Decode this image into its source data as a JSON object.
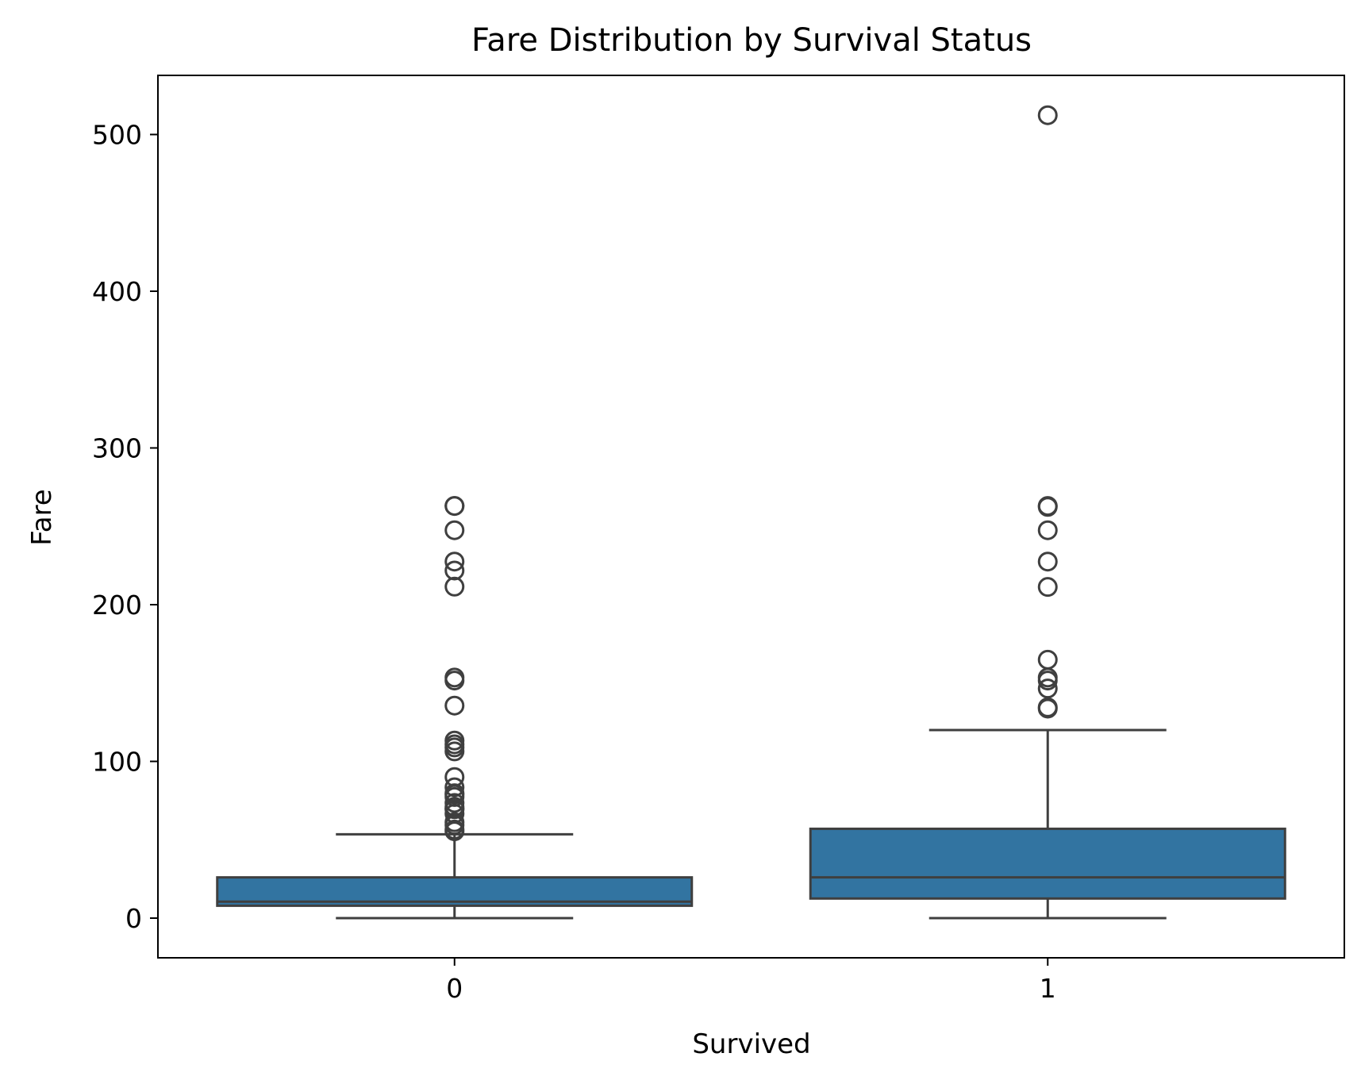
{
  "chart_data": {
    "type": "box",
    "title": "Fare Distribution by Survival Status",
    "xlabel": "Survived",
    "ylabel": "Fare",
    "ylim": [
      -25,
      540
    ],
    "yticks": [
      0,
      100,
      200,
      300,
      400,
      500
    ],
    "grid": false,
    "legend": "none",
    "box_color": "#3274a1",
    "line_color": "#3f3f3f",
    "categories": [
      "0",
      "1"
    ],
    "boxes": [
      {
        "category": "0",
        "whisker_low": 0,
        "q1": 7.9,
        "median": 10.5,
        "q3": 26,
        "whisker_high": 53.5,
        "outliers": [
          263,
          263,
          247.5,
          227.5,
          221.8,
          211.5,
          153.5,
          151.6,
          135.6,
          113.3,
          110.9,
          108.9,
          106.4,
          90,
          83.5,
          79.7,
          78.9,
          77.3,
          73.5,
          71,
          69.6,
          69.5,
          66.6,
          61.2,
          59.4,
          56.5,
          55.4
        ]
      },
      {
        "category": "1",
        "whisker_low": 0,
        "q1": 12.5,
        "median": 26,
        "q3": 57,
        "whisker_high": 120,
        "outliers": [
          512.3,
          263,
          262.4,
          247.5,
          227.5,
          211.3,
          164.9,
          153.5,
          151.6,
          146.5,
          134.5,
          133.7
        ]
      }
    ]
  }
}
